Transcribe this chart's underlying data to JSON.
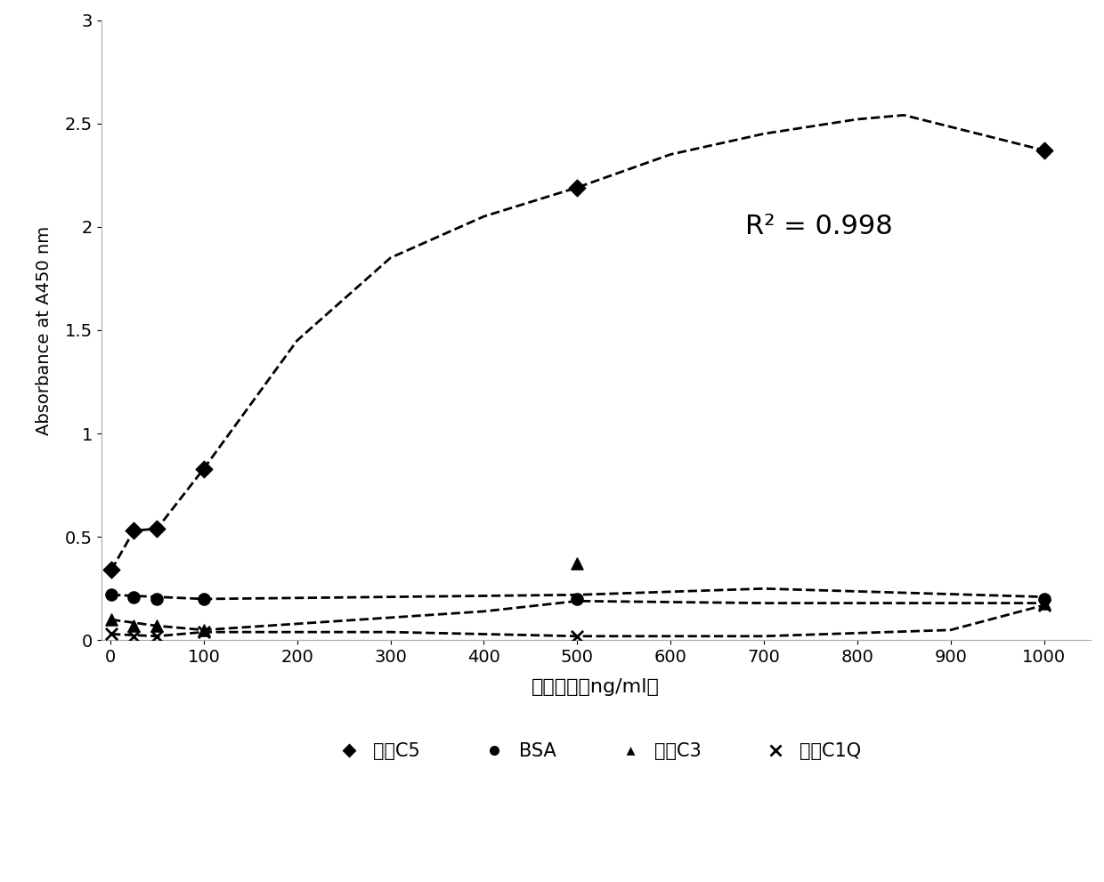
{
  "c5_x": [
    1,
    25,
    50,
    100,
    500,
    1000
  ],
  "c5_y": [
    0.34,
    0.53,
    0.54,
    0.83,
    2.19,
    2.37
  ],
  "bsa_x": [
    1,
    25,
    50,
    100,
    500,
    1000
  ],
  "bsa_y": [
    0.22,
    0.21,
    0.2,
    0.2,
    0.2,
    0.2
  ],
  "c3_x": [
    1,
    25,
    50,
    100,
    500,
    1000
  ],
  "c3_y": [
    0.1,
    0.07,
    0.07,
    0.05,
    0.37,
    0.18
  ],
  "c1q_x": [
    1,
    25,
    50,
    100,
    500,
    1000
  ],
  "c1q_y": [
    0.03,
    0.02,
    0.02,
    0.04,
    0.02,
    0.17
  ],
  "c5_fit_x": [
    1,
    25,
    50,
    100,
    200,
    300,
    400,
    500,
    600,
    700,
    800,
    850,
    1000
  ],
  "c5_fit_y": [
    0.34,
    0.53,
    0.54,
    0.83,
    1.45,
    1.85,
    2.05,
    2.19,
    2.35,
    2.45,
    2.52,
    2.54,
    2.37
  ],
  "bsa_fit_x": [
    1,
    100,
    500,
    700,
    1000
  ],
  "bsa_fit_y": [
    0.22,
    0.2,
    0.22,
    0.25,
    0.21
  ],
  "c3_fit_x": [
    1,
    50,
    100,
    200,
    400,
    500,
    700,
    1000
  ],
  "c3_fit_y": [
    0.1,
    0.07,
    0.05,
    0.08,
    0.14,
    0.19,
    0.18,
    0.18
  ],
  "c1q_fit_x": [
    1,
    50,
    100,
    300,
    500,
    700,
    900,
    1000
  ],
  "c1q_fit_y": [
    0.03,
    0.02,
    0.04,
    0.04,
    0.02,
    0.02,
    0.05,
    0.17
  ],
  "xlabel": "蛋白浓度（ng/ml）",
  "ylabel": "Absorbance at A450 nm",
  "xlim": [
    -10,
    1050
  ],
  "ylim": [
    0,
    3.0
  ],
  "xticks": [
    0,
    100,
    200,
    300,
    400,
    500,
    600,
    700,
    800,
    900,
    1000
  ],
  "yticks": [
    0,
    0.5,
    1.0,
    1.5,
    2.0,
    2.5,
    3.0
  ],
  "ytick_labels": [
    "0",
    "0.5",
    "1",
    "1.5",
    "2",
    "2.5",
    "3"
  ],
  "r2_text": "R² = 0.998",
  "r2_x": 680,
  "r2_y": 2.0,
  "background": "#ffffff"
}
